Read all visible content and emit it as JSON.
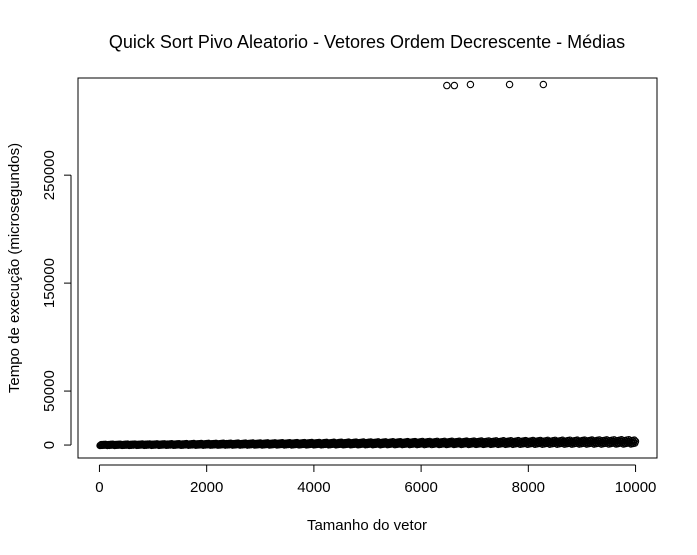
{
  "chart_data": {
    "type": "scatter",
    "title": "Quick Sort Pivo Aleatorio - Vetores Ordem Decrescente - Médias",
    "xlabel": "Tamanho do vetor",
    "ylabel": "Tempo de execução (microsegundos)",
    "xlim": [
      -400,
      10400
    ],
    "ylim": [
      -12000,
      340000
    ],
    "x_ticks": [
      0,
      2000,
      4000,
      6000,
      8000,
      10000
    ],
    "x_tick_labels": [
      "0",
      "2000",
      "4000",
      "6000",
      "8000",
      "10000"
    ],
    "y_ticks": [
      0,
      50000,
      150000,
      250000
    ],
    "y_tick_labels": [
      "0",
      "50000",
      "150000",
      "250000"
    ],
    "grid": false,
    "legend": "none",
    "marker": "open-circle",
    "color": "#000000",
    "series": [
      {
        "trend_band": {
          "x_start": 10,
          "x_end": 10000,
          "y_start": 100,
          "y_end": 3000
        },
        "outliers": [
          {
            "x": 6480,
            "y": 333000
          },
          {
            "x": 6620,
            "y": 333000
          },
          {
            "x": 6920,
            "y": 334000
          },
          {
            "x": 7650,
            "y": 334000
          },
          {
            "x": 8280,
            "y": 334000
          }
        ]
      }
    ]
  }
}
